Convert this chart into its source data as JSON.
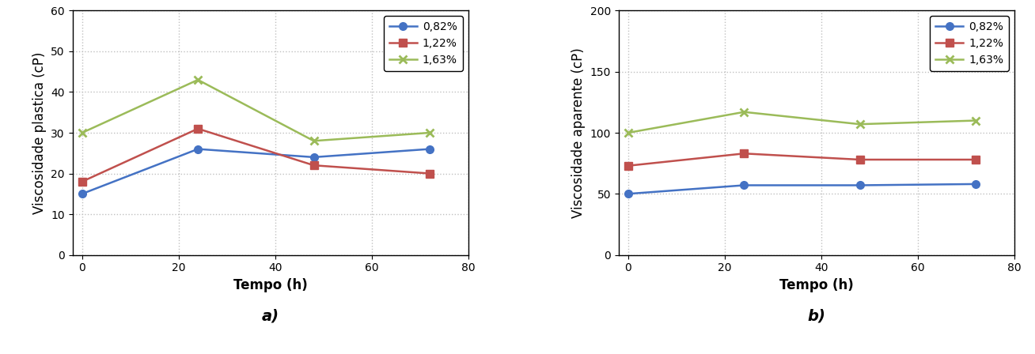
{
  "time": [
    0,
    24,
    48,
    72
  ],
  "plot_a": {
    "series": [
      {
        "label": "0,82%",
        "values": [
          15,
          26,
          24,
          26
        ],
        "color": "#4472C4",
        "marker": "o",
        "linestyle": "-"
      },
      {
        "label": "1,22%",
        "values": [
          18,
          31,
          22,
          20
        ],
        "color": "#C0504D",
        "marker": "s",
        "linestyle": "-"
      },
      {
        "label": "1,63%",
        "values": [
          30,
          43,
          28,
          30
        ],
        "color": "#9BBB59",
        "marker": "x",
        "linestyle": "-"
      }
    ],
    "ylabel": "Viscosidade plastica (cP)",
    "xlabel": "Tempo (h)",
    "ylim": [
      0,
      60
    ],
    "xlim": [
      -2,
      80
    ],
    "yticks": [
      0,
      10,
      20,
      30,
      40,
      50,
      60
    ],
    "xticks": [
      0,
      20,
      40,
      60,
      80
    ],
    "label": "a)"
  },
  "plot_b": {
    "series": [
      {
        "label": "0,82%",
        "values": [
          50,
          57,
          57,
          58
        ],
        "color": "#4472C4",
        "marker": "o",
        "linestyle": "-"
      },
      {
        "label": "1,22%",
        "values": [
          73,
          83,
          78,
          78
        ],
        "color": "#C0504D",
        "marker": "s",
        "linestyle": "-"
      },
      {
        "label": "1,63%",
        "values": [
          100,
          117,
          107,
          110
        ],
        "color": "#9BBB59",
        "marker": "x",
        "linestyle": "-"
      }
    ],
    "ylabel": "Viscosidade aparente (cP)",
    "xlabel": "Tempo (h)",
    "ylim": [
      0,
      200
    ],
    "xlim": [
      -2,
      80
    ],
    "yticks": [
      0,
      50,
      100,
      150,
      200
    ],
    "xticks": [
      0,
      20,
      40,
      60,
      80
    ],
    "label": "b)"
  },
  "legend_fontsize": 10,
  "axis_label_fontsize": 12,
  "tick_fontsize": 10,
  "sublabel_fontsize": 14,
  "grid_color": "#C0C0C0",
  "grid_linestyle": ":",
  "grid_linewidth": 1.0,
  "linewidth": 1.8,
  "markersize": 7
}
